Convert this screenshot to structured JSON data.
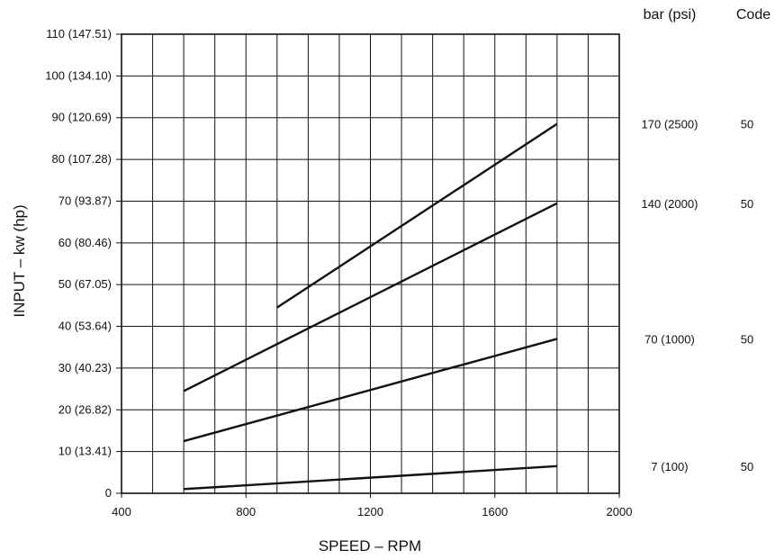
{
  "chart_data": {
    "type": "line",
    "xlabel": "SPEED – RPM",
    "ylabel": "INPUT – kw (hp)",
    "xlim": [
      400,
      2000
    ],
    "ylim": [
      0,
      110
    ],
    "x_ticks": [
      400,
      800,
      1200,
      1600,
      2000
    ],
    "y_ticks": [
      {
        "value": 0,
        "label": "0"
      },
      {
        "value": 10,
        "label": "10 (13.41)"
      },
      {
        "value": 20,
        "label": "20 (26.82)"
      },
      {
        "value": 30,
        "label": "30 (40.23)"
      },
      {
        "value": 40,
        "label": "40 (53.64)"
      },
      {
        "value": 50,
        "label": "50 (67.05)"
      },
      {
        "value": 60,
        "label": "60 (80.46)"
      },
      {
        "value": 70,
        "label": "70 (93.87)"
      },
      {
        "value": 80,
        "label": "80 (107.28)"
      },
      {
        "value": 90,
        "label": "90 (120.69)"
      },
      {
        "value": 100,
        "label": "100 (134.10)"
      },
      {
        "value": 110,
        "label": "110 (147.51)"
      }
    ],
    "grid": true,
    "right_headers": {
      "pressure": "bar (psi)",
      "code": "Code"
    },
    "series": [
      {
        "pressure": "170 (2500)",
        "code": "50",
        "x": [
          900,
          1800
        ],
        "y": [
          44.5,
          88.5
        ]
      },
      {
        "pressure": "140 (2000)",
        "code": "50",
        "x": [
          600,
          1800
        ],
        "y": [
          24.5,
          69.5
        ]
      },
      {
        "pressure": "70 (1000)",
        "code": "50",
        "x": [
          600,
          1800
        ],
        "y": [
          12.5,
          37
        ]
      },
      {
        "pressure": "7 (100)",
        "code": "50",
        "x": [
          600,
          1800
        ],
        "y": [
          1,
          6.5
        ]
      }
    ]
  }
}
